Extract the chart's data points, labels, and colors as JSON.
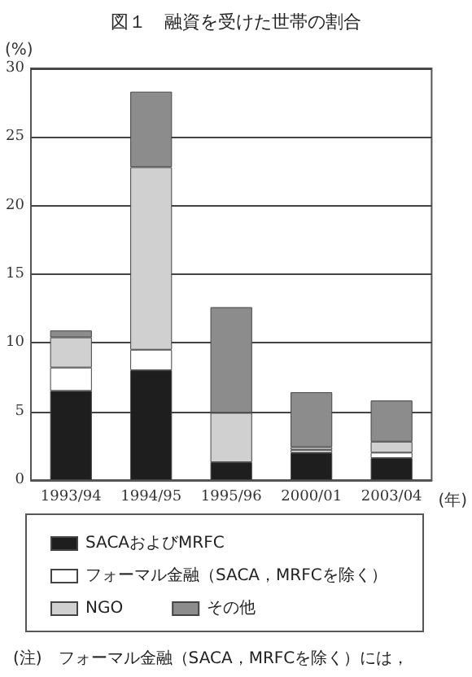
{
  "chart_data": {
    "type": "bar",
    "title": "図１　融資を受けた世帯の割合",
    "ylabel": "(%)",
    "xlabel": "(年)",
    "stacked": true,
    "categories": [
      "1993/94",
      "1994/95",
      "1995/96",
      "2000/01",
      "2003/04"
    ],
    "series": [
      {
        "name": "SACAおよびMRFC",
        "color": "#1e1e1e",
        "values": [
          6.5,
          8.0,
          1.3,
          2.0,
          1.6
        ]
      },
      {
        "name": "フォーマル金融（SACA，MRFCを除く）",
        "color": "#ffffff",
        "values": [
          1.7,
          1.5,
          0,
          0.2,
          0.4
        ]
      },
      {
        "name": "NGO",
        "color": "#d0d0d0",
        "values": [
          2.2,
          13.3,
          3.6,
          0.2,
          0.8
        ]
      },
      {
        "name": "その他",
        "color": "#8c8c8c",
        "values": [
          0.5,
          5.5,
          7.7,
          4.0,
          3.0
        ]
      }
    ],
    "ylim": [
      0,
      30
    ],
    "yticks": [
      0,
      5,
      10,
      15,
      20,
      25,
      30
    ],
    "grid": "y",
    "legend": "bottom",
    "annotations": [
      "(注)　フォーマル金融（SACA，MRFCを除く）には，"
    ]
  }
}
